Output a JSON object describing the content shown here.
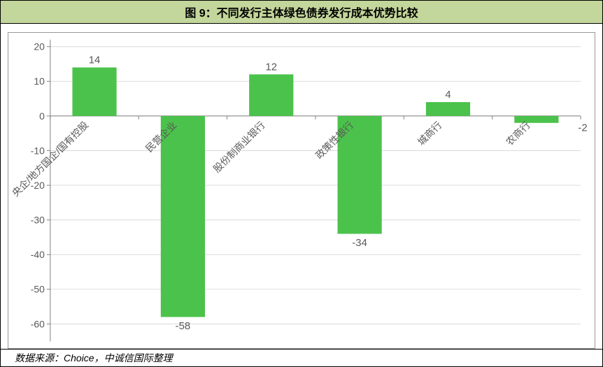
{
  "title": "图 9：不同发行主体绿色债券发行成本优势比较",
  "source": "数据来源：Choice，中诚信国际整理",
  "chart": {
    "type": "bar",
    "categories": [
      "央企/地方国企/国有控股",
      "民营企业",
      "股份制商业银行",
      "政策性银行",
      "城商行",
      "农商行"
    ],
    "values": [
      14,
      -58,
      12,
      -34,
      4,
      -2
    ],
    "bar_color": "#4bc24b",
    "ylim_min": -65,
    "ylim_max": 22,
    "yticks": [
      -60,
      -50,
      -40,
      -30,
      -20,
      -10,
      0,
      10,
      20
    ],
    "background_color": "#ffffff",
    "grid_color": "#d9d9d9",
    "axis_color": "#808080",
    "tick_label_color": "#595959",
    "value_label_color": "#595959",
    "title_bg_color": "#c3d69b",
    "title_fontsize": 16,
    "tick_fontsize": 14,
    "value_fontsize": 15,
    "category_label_rotation": -45,
    "bar_width_ratio": 0.5,
    "neg2_label": "-2"
  }
}
